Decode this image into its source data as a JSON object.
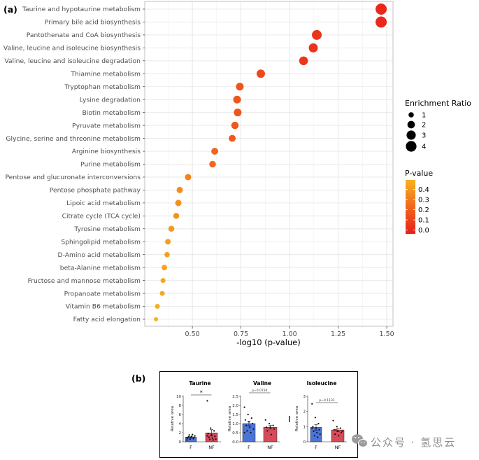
{
  "panel_a": {
    "label": "(a)"
  },
  "panel_b": {
    "label": "(b)"
  },
  "watermark": {
    "text": "公众号 · 氢思云",
    "icon": "wechat-icon",
    "color": "#8f8f8f"
  },
  "chart_data": [
    {
      "type": "scatter",
      "title": "",
      "xlabel": "-log10 (p-value)",
      "ylabel": "",
      "xlim": [
        0.255,
        1.532
      ],
      "xticks": [
        0.5,
        0.75,
        1.0,
        1.25,
        1.5
      ],
      "xtick_labels": [
        "0.50",
        "0.75",
        "1.00",
        "1.25",
        "1.50"
      ],
      "grid": true,
      "categories": [
        "Taurine and hypotaurine metabolism",
        "Primary bile acid biosynthesis",
        "Pantothenate and CoA biosynthesis",
        "Valine, leucine and isoleucine biosynthesis",
        "Valine, leucine and isoleucine degradation",
        "Thiamine metabolism",
        "Tryptophan metabolism",
        "Lysine degradation",
        "Biotin metabolism",
        "Pyruvate metabolism",
        "Glycine, serine and threonine metabolism",
        "Arginine biosynthesis",
        "Purine metabolism",
        "Pentose and glucuronate interconversions",
        "Pentose phosphate pathway",
        "Lipoic acid metabolism",
        "Citrate cycle (TCA cycle)",
        "Tyrosine metabolism",
        "Sphingolipid metabolism",
        "D-Amino acid metabolism",
        "beta-Alanine metabolism",
        "Fructose and mannose metabolism",
        "Propanoate metabolism",
        "Vitamin B6 metabolism",
        "Fatty acid elongation"
      ],
      "x": [
        1.471,
        1.471,
        1.14,
        1.122,
        1.072,
        0.852,
        0.744,
        0.73,
        0.733,
        0.719,
        0.705,
        0.615,
        0.604,
        0.478,
        0.435,
        0.428,
        0.417,
        0.392,
        0.374,
        0.37,
        0.356,
        0.349,
        0.345,
        0.32,
        0.313
      ],
      "enrichment_ratio": [
        4.4,
        4.4,
        3.4,
        2.9,
        2.7,
        2.5,
        2.1,
        2.1,
        2.1,
        1.9,
        1.7,
        1.7,
        1.6,
        1.4,
        1.4,
        1.4,
        1.25,
        1.25,
        1.1,
        1.0,
        1.1,
        0.85,
        0.85,
        0.85,
        0.62
      ],
      "p_value": [
        0.034,
        0.034,
        0.072,
        0.076,
        0.085,
        0.141,
        0.18,
        0.186,
        0.185,
        0.191,
        0.197,
        0.243,
        0.249,
        0.333,
        0.367,
        0.373,
        0.383,
        0.406,
        0.423,
        0.427,
        0.441,
        0.448,
        0.452,
        0.479,
        0.486
      ],
      "size_legend": {
        "title": "Enrichment Ratio",
        "values": [
          1,
          2,
          3,
          4
        ],
        "labels": [
          "1",
          "2",
          "3",
          "4"
        ],
        "placement": "right"
      },
      "color_legend": {
        "title": "P-value",
        "ticks": [
          0.4,
          0.3,
          0.2,
          0.1,
          0.0
        ],
        "labels": [
          "0.4",
          "0.3",
          "0.2",
          "0.1",
          "0.0"
        ],
        "low_color": "#e81e1b",
        "high_color": "#f6b21e",
        "placement": "right"
      }
    },
    {
      "type": "bar",
      "title": "Taurine",
      "ylabel": "Relative area",
      "categories": [
        "F",
        "NF"
      ],
      "values": [
        1.0,
        1.96
      ],
      "error": [
        0.12,
        0.7
      ],
      "points": [
        [
          0.4,
          0.6,
          0.7,
          0.8,
          0.9,
          1.0,
          1.1,
          1.2,
          1.3,
          1.5,
          1.6,
          0.9
        ],
        [
          9.0,
          3.0,
          2.4,
          1.8,
          1.5,
          1.2,
          1.0,
          0.8,
          0.6,
          0.5,
          0.4,
          1.3
        ]
      ],
      "ylim": [
        0,
        10
      ],
      "yticks": [
        0,
        2,
        4,
        6,
        8,
        10
      ],
      "ytick_labels": [
        "0",
        "2",
        "4",
        "6",
        "8",
        "10"
      ],
      "colors": [
        "#4a74d8",
        "#d64b5a"
      ],
      "annotation": "*"
    },
    {
      "type": "bar",
      "title": "Valine",
      "ylabel": "Relative area",
      "categories": [
        "F",
        "NF"
      ],
      "values": [
        1.0,
        0.8
      ],
      "error": [
        0.12,
        0.1
      ],
      "points": [
        [
          1.9,
          1.5,
          1.3,
          1.2,
          1.1,
          1.0,
          0.9,
          0.8,
          0.7,
          0.6,
          0.5,
          0.5
        ],
        [
          1.2,
          1.0,
          0.9,
          0.8,
          0.8,
          0.7,
          0.6,
          0.4
        ]
      ],
      "ylim": [
        0,
        2.5
      ],
      "yticks": [
        0,
        0.5,
        1.0,
        1.5,
        2.0,
        2.5
      ],
      "ytick_labels": [
        "0.0",
        "0.5",
        "1.0",
        "1.5",
        "2.0",
        "2.5"
      ],
      "colors": [
        "#4a74d8",
        "#d64b5a"
      ],
      "annotation": "p=0.0734"
    },
    {
      "type": "bar",
      "title": "Isoleucine",
      "ylabel": "Relative area",
      "categories": [
        "F",
        "NF"
      ],
      "values": [
        0.95,
        0.78
      ],
      "error": [
        0.18,
        0.1
      ],
      "points": [
        [
          2.5,
          1.6,
          1.2,
          1.0,
          0.9,
          0.8,
          0.7,
          0.6,
          0.5,
          0.4,
          0.3,
          0.9
        ],
        [
          1.4,
          1.0,
          0.9,
          0.8,
          0.7,
          0.6,
          0.5,
          0.4,
          0.7,
          0.8
        ]
      ],
      "ylim": [
        0,
        3
      ],
      "yticks": [
        0,
        1,
        2,
        3
      ],
      "ytick_labels": [
        "0",
        "1",
        "2",
        "3"
      ],
      "colors": [
        "#4a74d8",
        "#d64b5a"
      ],
      "annotation": "p=0.1131"
    }
  ]
}
